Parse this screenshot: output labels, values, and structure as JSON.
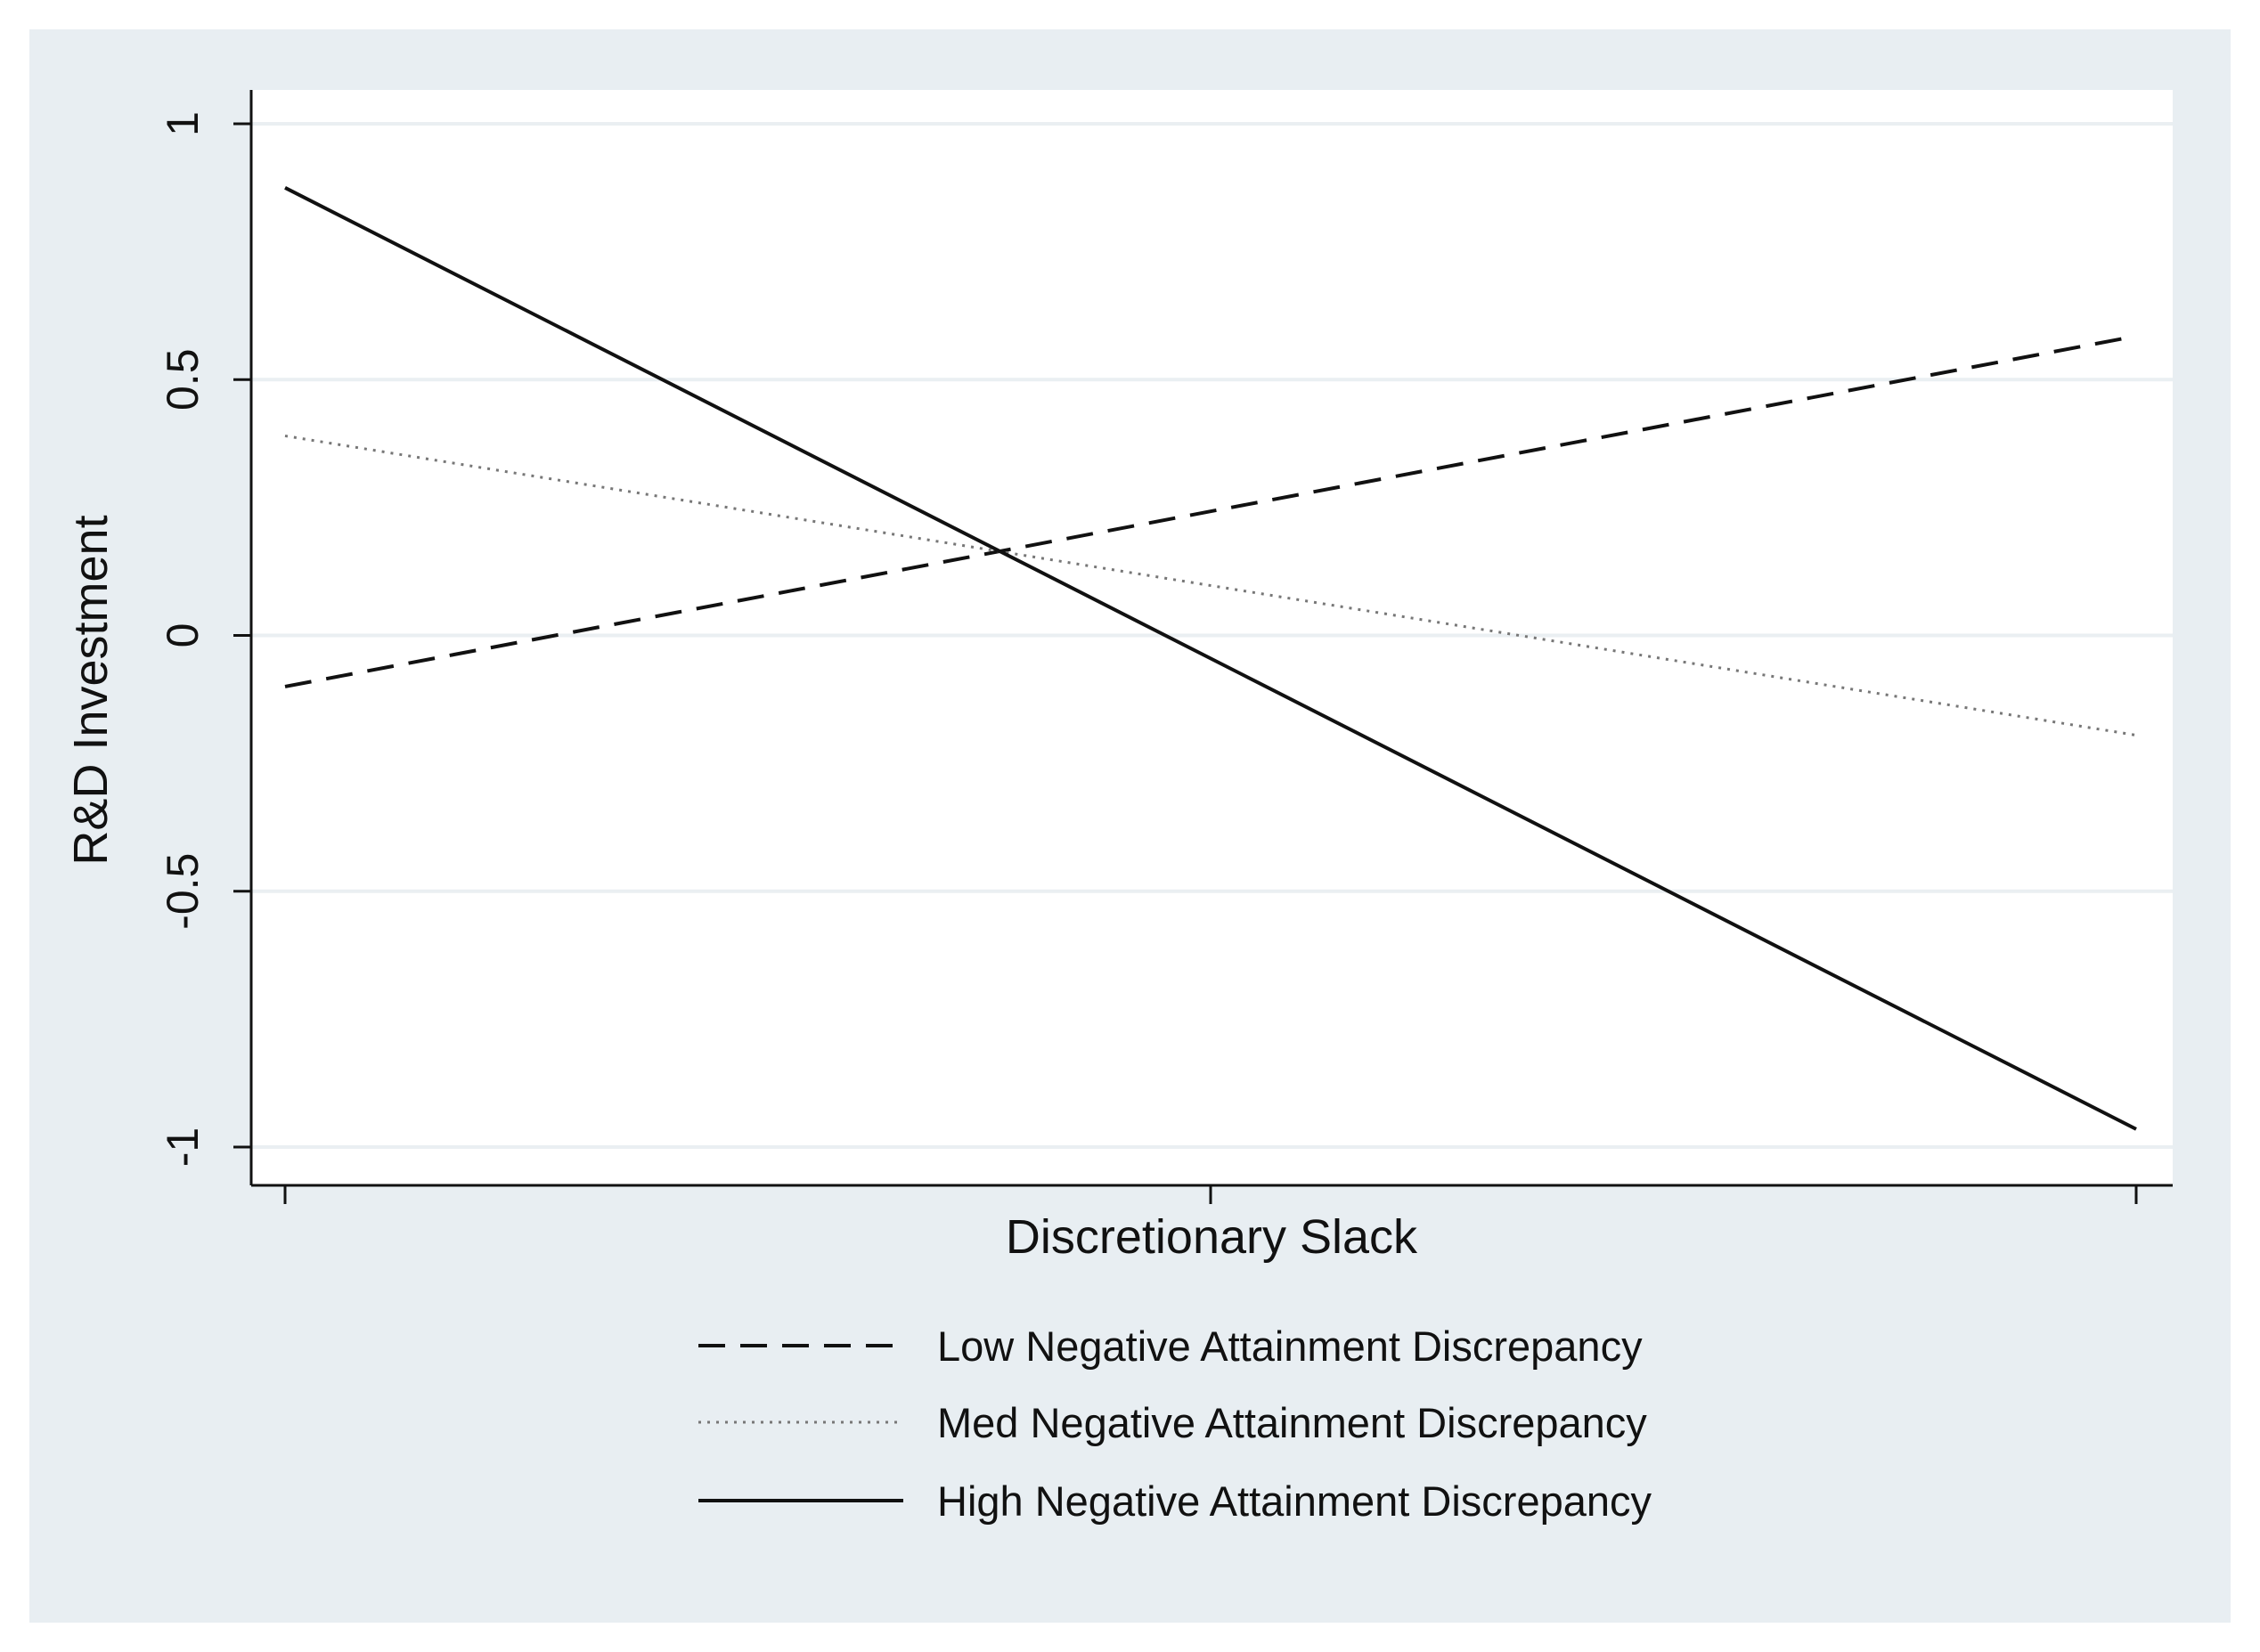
{
  "chart_data": {
    "type": "line",
    "title": "",
    "xlabel": "Discretionary Slack",
    "ylabel": "R&D Investment",
    "xlim": [
      0,
      2
    ],
    "ylim": [
      -1,
      1
    ],
    "x_ticks": [
      0,
      1,
      2
    ],
    "x_tick_labels": [
      "",
      "",
      ""
    ],
    "y_ticks": [
      -1,
      -0.5,
      0,
      0.5,
      1
    ],
    "y_tick_labels": [
      "-1",
      "-0.5",
      "0",
      "0.5",
      "1"
    ],
    "grid": true,
    "legend_position": "bottom",
    "series": [
      {
        "name": "Low Negative Attainment Discrepancy",
        "style": "dashed",
        "x": [
          0,
          2
        ],
        "y": [
          -0.1,
          0.585
        ]
      },
      {
        "name": "Med Negative Attainment Discrepancy",
        "style": "dotted",
        "x": [
          0,
          2
        ],
        "y": [
          0.39,
          -0.195
        ]
      },
      {
        "name": "High Negative Attainment Discrepancy",
        "style": "solid",
        "x": [
          0,
          2
        ],
        "y": [
          0.875,
          -0.965
        ]
      }
    ]
  },
  "colors": {
    "outer_background": "#e8eef2",
    "plot_background": "#ffffff",
    "gridline": "#eaeff2",
    "line": "#111111",
    "dotted_line": "#777777"
  }
}
